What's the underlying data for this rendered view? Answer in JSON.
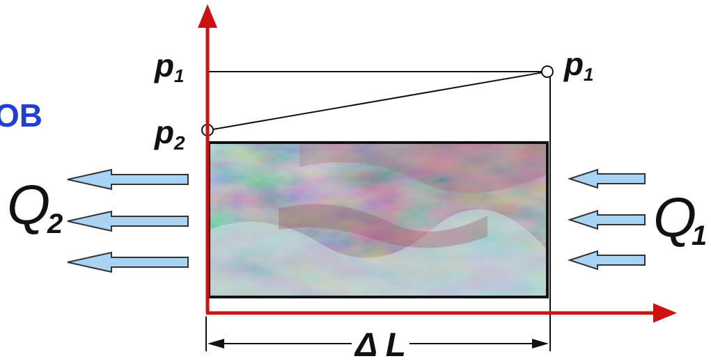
{
  "diagram": {
    "cropped_text": "OB",
    "labels": {
      "p1_left": "p",
      "p1_left_sub": "1",
      "p1_right": "p",
      "p1_right_sub": "1",
      "p2": "p",
      "p2_sub": "2",
      "q2": "Q",
      "q2_sub": "2",
      "q1": "Q",
      "q1_sub": "1",
      "delta_l": "Δ L"
    },
    "colors": {
      "axis": "#cc1111",
      "arrow_fill": "#a9d3f2",
      "arrow_stroke": "#333333",
      "blue_text": "#1f3fd6"
    },
    "icons": {
      "flow_arrow": "left-arrow-icon",
      "axis_arrow": "axis-arrowhead-icon"
    }
  }
}
